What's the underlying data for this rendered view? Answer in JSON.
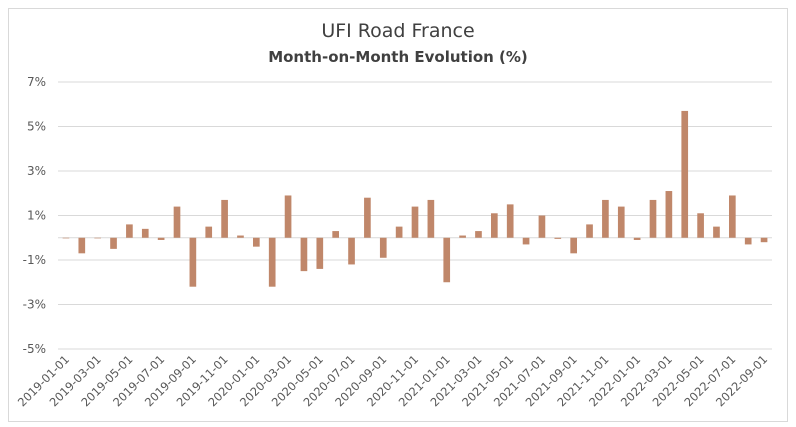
{
  "chart_data": {
    "type": "bar",
    "title": "UFI Road France",
    "subtitle": "Month-on-Month Evolution (%)",
    "xlabel": "",
    "ylabel": "",
    "ylim": [
      -5,
      7
    ],
    "yticks": [
      "7%",
      "5%",
      "3%",
      "1%",
      "-1%",
      "-3%",
      "-5%"
    ],
    "ytick_values": [
      7,
      5,
      3,
      1,
      -1,
      -3,
      -5
    ],
    "grid": true,
    "bar_color": "#c0876a",
    "grid_color": "#d9d9d9",
    "categories": [
      "2019-01-01",
      "2019-02-01",
      "2019-03-01",
      "2019-04-01",
      "2019-05-01",
      "2019-06-01",
      "2019-07-01",
      "2019-08-01",
      "2019-09-01",
      "2019-10-01",
      "2019-11-01",
      "2019-12-01",
      "2020-01-01",
      "2020-02-01",
      "2020-03-01",
      "2020-04-01",
      "2020-05-01",
      "2020-06-01",
      "2020-07-01",
      "2020-08-01",
      "2020-09-01",
      "2020-10-01",
      "2020-11-01",
      "2020-12-01",
      "2021-01-01",
      "2021-02-01",
      "2021-03-01",
      "2021-04-01",
      "2021-05-01",
      "2021-06-01",
      "2021-07-01",
      "2021-08-01",
      "2021-09-01",
      "2021-10-01",
      "2021-11-01",
      "2021-12-01",
      "2022-01-01",
      "2022-02-01",
      "2022-03-01",
      "2022-04-01",
      "2022-05-01",
      "2022-06-01",
      "2022-07-01",
      "2022-08-01",
      "2022-09-01"
    ],
    "values": [
      0.0,
      -0.7,
      0.0,
      -0.5,
      0.6,
      0.4,
      -0.1,
      1.4,
      -2.2,
      0.5,
      1.7,
      0.1,
      -0.4,
      -2.2,
      1.9,
      -1.5,
      -1.4,
      0.3,
      -1.2,
      1.8,
      -0.9,
      0.5,
      1.4,
      1.7,
      -2.0,
      0.1,
      0.3,
      1.1,
      1.5,
      -0.3,
      1.0,
      -0.05,
      -0.7,
      0.6,
      1.7,
      1.4,
      -0.1,
      1.7,
      2.1,
      5.7,
      1.1,
      0.5,
      1.9,
      -0.3,
      -0.2
    ],
    "shown_labels": [
      "2019-01-01",
      "2019-03-01",
      "2019-05-01",
      "2019-07-01",
      "2019-09-01",
      "2019-11-01",
      "2020-01-01",
      "2020-03-01",
      "2020-05-01",
      "2020-07-01",
      "2020-09-01",
      "2020-11-01",
      "2021-01-01",
      "2021-03-01",
      "2021-05-01",
      "2021-07-01",
      "2021-09-01",
      "2021-11-01",
      "2022-01-01",
      "2022-03-01",
      "2022-05-01",
      "2022-07-01",
      "2022-09-01"
    ]
  }
}
